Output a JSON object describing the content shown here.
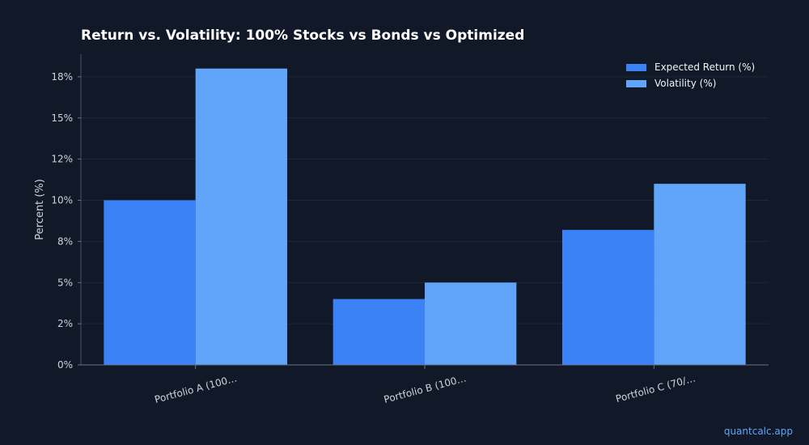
{
  "chart_data": {
    "type": "bar",
    "title": "Return vs. Volatility: 100% Stocks vs Bonds vs Optimized",
    "xlabel": "",
    "ylabel": "Percent (%)",
    "categories": [
      "Portfolio A (100…",
      "Portfolio B (100…",
      "Portfolio C (70/…"
    ],
    "series": [
      {
        "name": "Expected Return (%)",
        "color": "#3b82f6",
        "values": [
          10.0,
          4.0,
          8.2
        ]
      },
      {
        "name": "Volatility (%)",
        "color": "#60a5fa",
        "values": [
          18.0,
          5.0,
          11.0
        ]
      }
    ],
    "ylim": [
      0,
      18.87
    ],
    "yticks": [
      0,
      2.5,
      5,
      7.5,
      10,
      12.5,
      15,
      17.5
    ],
    "ytick_labels": [
      "0%",
      "2%",
      "5%",
      "8%",
      "10%",
      "12%",
      "15%",
      "18%"
    ],
    "grid": true,
    "legend_position": "top-right"
  },
  "watermark": "quantcalc.app"
}
